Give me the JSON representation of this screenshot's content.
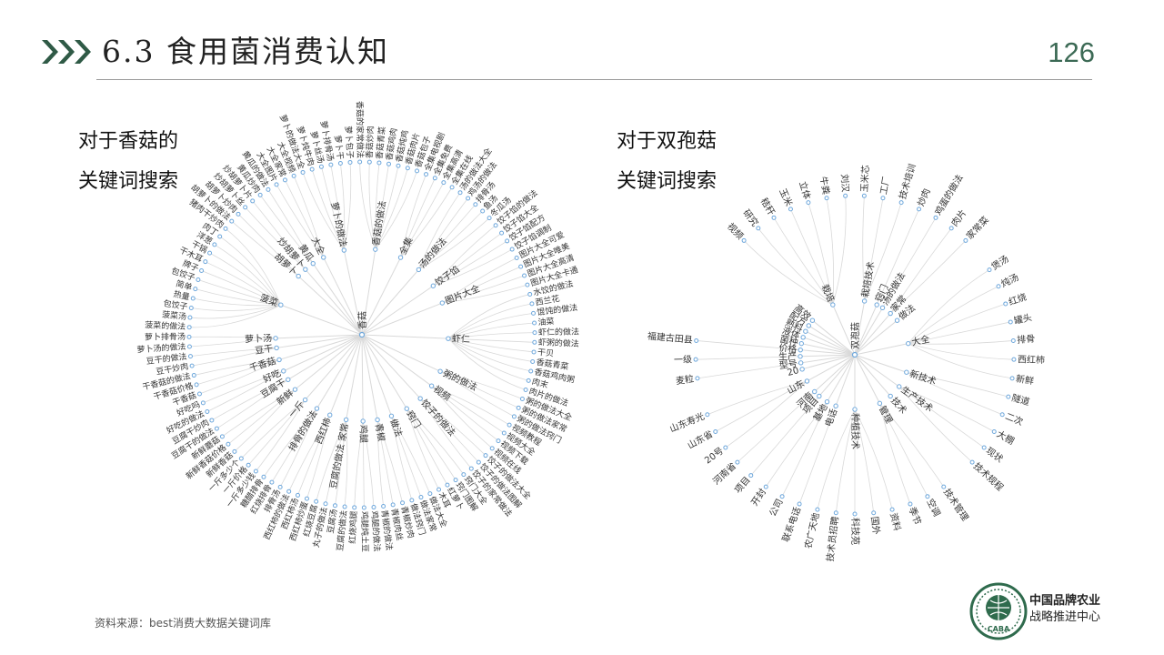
{
  "header": {
    "title": "6.3 食用菌消费认知",
    "page_number": "126"
  },
  "colors": {
    "accent": "#3c6a55",
    "node": "#6fa8dc",
    "link": "#d9d9d9"
  },
  "left_section": {
    "caption_line1": "对于香菇的",
    "caption_line2": "关键词搜索"
  },
  "right_section": {
    "caption_line1": "对于双孢菇",
    "caption_line2": "关键词搜索"
  },
  "footer": {
    "source": "资料来源：best消费大数据关键词库",
    "org_line1": "中国品牌农业",
    "org_line2": "战略推进中心",
    "logo_text": "CABA"
  },
  "tree_xianggu": {
    "root": "香菇",
    "children": [
      {
        "name": "萝卜的做法",
        "children": [
          "萝卜的做法大全",
          "萝卜炖牛肉",
          "萝卜丝汤",
          "萝卜排骨汤",
          "萝卜干",
          "萝卜包子"
        ]
      },
      {
        "name": "香菇的做法",
        "children": [
          "香菇的家常做法",
          "香菇炒肉",
          "香菇青菜",
          "香菇鸡肉",
          "香菇炖鸡",
          "香菇肉片",
          "香菇包子"
        ]
      },
      {
        "name": "全集",
        "children": [
          "全集电视剧",
          "全集免费",
          "全集高清",
          "全集在线"
        ]
      },
      {
        "name": "汤的做法",
        "children": [
          "汤的做法大全",
          "鸡汤的做法",
          "排骨汤",
          "鱼汤",
          "冬瓜汤"
        ]
      },
      {
        "name": "饺子馅",
        "children": [
          "饺子馅的做法",
          "饺子馅大全",
          "饺子馅配方",
          "饺子馅调制"
        ]
      },
      {
        "name": "图片大全",
        "children": [
          "图片大全可爱",
          "图片大全唯美",
          "图片大全高清",
          "图片大全卡通"
        ]
      },
      {
        "name": "虾仁",
        "children": [
          "水饺的做法",
          "西兰花",
          "馄饨的做法",
          "油菜",
          "虾仁的做法",
          "虾粥的做法",
          "干贝",
          "香菇青菜",
          "香菇鸡肉粥",
          "肉末",
          "肉片的做法"
        ]
      },
      {
        "name": "粥的做法",
        "children": [
          "粥的做法大全",
          "粥的做法家常",
          "粥的做法窍门"
        ]
      },
      {
        "name": "视频",
        "children": [
          "视频教程",
          "视频大全",
          "视频下载",
          "视频在线"
        ]
      },
      {
        "name": "饺子的做法",
        "children": [
          "饺子的做法大全",
          "饺子的做法图解",
          "饺子的家常做法"
        ]
      },
      {
        "name": "窍门",
        "children": [
          "窍门大全",
          "窍门图解",
          "红萝卜",
          "木耳"
        ]
      },
      {
        "name": "做法",
        "children": [
          "做法大全",
          "做法家常",
          "做法窍门"
        ]
      },
      {
        "name": "青椒",
        "children": [
          "青椒炒肉",
          "青椒肉丝",
          "青椒的做法"
        ]
      },
      {
        "name": "鸡腿",
        "children": [
          "鸡腿的做法",
          "鸡腿炖土豆",
          "红烧鸡腿"
        ]
      },
      {
        "name": "豆腐的做法 家常",
        "children": [
          "豆腐的做法",
          "豆腐汤",
          "丸子的做法",
          "红烧豆腐"
        ]
      },
      {
        "name": "西红柿",
        "children": [
          "西红柿炒蛋",
          "西红柿汤",
          "西红柿的做法"
        ]
      },
      {
        "name": "排骨的做法",
        "children": [
          "排骨汤",
          "红烧排骨",
          "糖醋排骨"
        ]
      },
      {
        "name": "一斤",
        "children": [
          "一斤多少钱",
          "一斤价格",
          "一斤多少个"
        ]
      },
      {
        "name": "新鲜",
        "children": [
          "新鲜香菇",
          "新鲜香菇价格",
          "新鲜蘑菇"
        ]
      },
      {
        "name": "豆腐干",
        "children": [
          "豆腐干的做法",
          "豆腐干炒肉"
        ]
      },
      {
        "name": "好吃",
        "children": [
          "好吃的做法",
          "好吃吗"
        ]
      },
      {
        "name": "千香菇",
        "children": [
          "干香菇",
          "干香菇价格",
          "干香菇的做法"
        ]
      },
      {
        "name": "豆干",
        "children": [
          "豆干炒肉",
          "豆干的做法"
        ]
      },
      {
        "name": "萝卜汤",
        "children": [
          "萝卜汤的做法",
          "萝卜排骨汤"
        ]
      },
      {
        "name": "菠菜",
        "children": [
          "菠菜的做法",
          "菠菜汤",
          "包饺子",
          "热量",
          "简单",
          "包饺子",
          "牌子",
          "干木耳",
          "干锅",
          "洋葱",
          "肉丁",
          "猪肉干炒肉"
        ]
      },
      {
        "name": "胡萝卜",
        "children": [
          "胡萝卜的做法",
          "胡萝卜炒肉"
        ]
      },
      {
        "name": "炒胡萝卜",
        "children": [
          "炒胡萝卜丝",
          "炒胡萝卜片"
        ]
      },
      {
        "name": "黄瓜",
        "children": [
          "黄瓜炒肉",
          "黄瓜的做法"
        ]
      },
      {
        "name": "大全",
        "children": [
          "大全图片",
          "大全家常",
          "大全视频"
        ]
      }
    ]
  },
  "tree_shuangbaogu": {
    "root": "双孢菇",
    "children": [
      {
        "name": "栽培技术",
        "children": [
          "玉米芯",
          "工厂",
          "技术培训"
        ]
      },
      {
        "name": "窍门",
        "children": [
          "炒肉"
        ]
      },
      {
        "name": "汤的做法",
        "children": [
          "鸡蛋的做法"
        ]
      },
      {
        "name": "家常",
        "children": [
          "肉片",
          "家常菜"
        ]
      },
      {
        "name": "做法",
        "children": []
      },
      {
        "name": "大全",
        "children": [
          "煲汤",
          "炖汤",
          "红烧",
          "罐头",
          "排骨",
          "西红柿",
          "新鲜"
        ]
      },
      {
        "name": "新技术",
        "children": [
          "隧道",
          "二次"
        ]
      },
      {
        "name": "生产技术",
        "children": [
          "大棚",
          "现状",
          "技术规程"
        ]
      },
      {
        "name": "技术",
        "children": []
      },
      {
        "name": "管理",
        "children": [
          "技术管理",
          "空调",
          "季节"
        ]
      },
      {
        "name": "种植技术",
        "children": [
          "资料",
          "国外",
          "科技苑",
          "技术员招聘",
          "农广天地"
        ]
      },
      {
        "name": "电话",
        "children": [
          "联系电话"
        ]
      },
      {
        "name": "基地",
        "children": [
          "公司",
          "开封"
        ]
      },
      {
        "name": "项目",
        "children": [
          "项目"
        ]
      },
      {
        "name": "河南",
        "children": [
          "河南省"
        ]
      },
      {
        "name": "山东",
        "children": [
          "20号",
          "山东省",
          "山东寿光"
        ]
      },
      {
        "name": "20",
        "children": []
      },
      {
        "name": "型号",
        "children": [
          "麦粒"
        ]
      },
      {
        "name": "生产",
        "children": [
          "一级"
        ]
      },
      {
        "name": "价格",
        "children": [
          "福建古田县"
        ]
      },
      {
        "name": "菌种",
        "children": []
      },
      {
        "name": "液体",
        "children": []
      },
      {
        "name": "熟料",
        "children": []
      },
      {
        "name": "配方",
        "children": []
      },
      {
        "name": "高效",
        "children": []
      },
      {
        "name": "栽培",
        "children": [
          "视频",
          "研究",
          "秸秆",
          "玉米",
          "立体",
          "牛粪",
          "刘汉"
        ]
      }
    ]
  }
}
